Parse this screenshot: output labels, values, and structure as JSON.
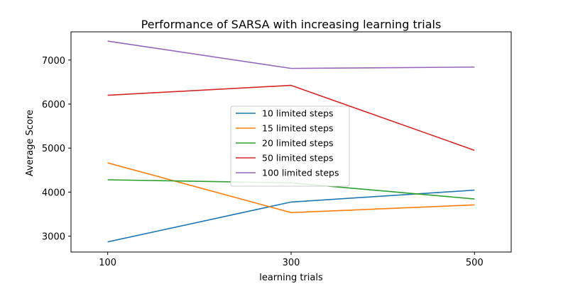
{
  "chart_data": {
    "type": "line",
    "title": "Performance of SARSA with increasing learning trials",
    "xlabel": "learning trials",
    "ylabel": "Average Score",
    "x": [
      100,
      300,
      500
    ],
    "xlim": [
      60,
      540
    ],
    "ylim": [
      2640,
      7640
    ],
    "xticks": [
      100,
      300,
      500
    ],
    "yticks": [
      3000,
      4000,
      5000,
      6000,
      7000
    ],
    "grid": false,
    "legend_position": "center",
    "series": [
      {
        "name": "10 limited steps",
        "color": "#1f77b4",
        "values": [
          2870,
          3775,
          4045
        ]
      },
      {
        "name": "15 limited steps",
        "color": "#ff7f0e",
        "values": [
          4665,
          3535,
          3710
        ]
      },
      {
        "name": "20 limited steps",
        "color": "#2ca02c",
        "values": [
          4280,
          4210,
          3845
        ]
      },
      {
        "name": "50 limited steps",
        "color": "#d62728",
        "values": [
          6200,
          6425,
          4950
        ]
      },
      {
        "name": "100 limited steps",
        "color": "#9467bd",
        "values": [
          7430,
          6810,
          6840
        ]
      }
    ]
  }
}
